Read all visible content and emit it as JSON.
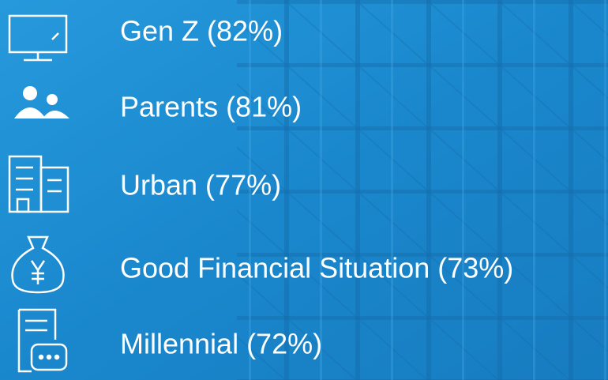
{
  "items": [
    {
      "label": "Gen Z (82%)"
    },
    {
      "label": "Parents (81%)"
    },
    {
      "label": "Urban (77%)"
    },
    {
      "label": "Good Financial Situation (73%)"
    },
    {
      "label": "Millennial (72%)"
    }
  ]
}
